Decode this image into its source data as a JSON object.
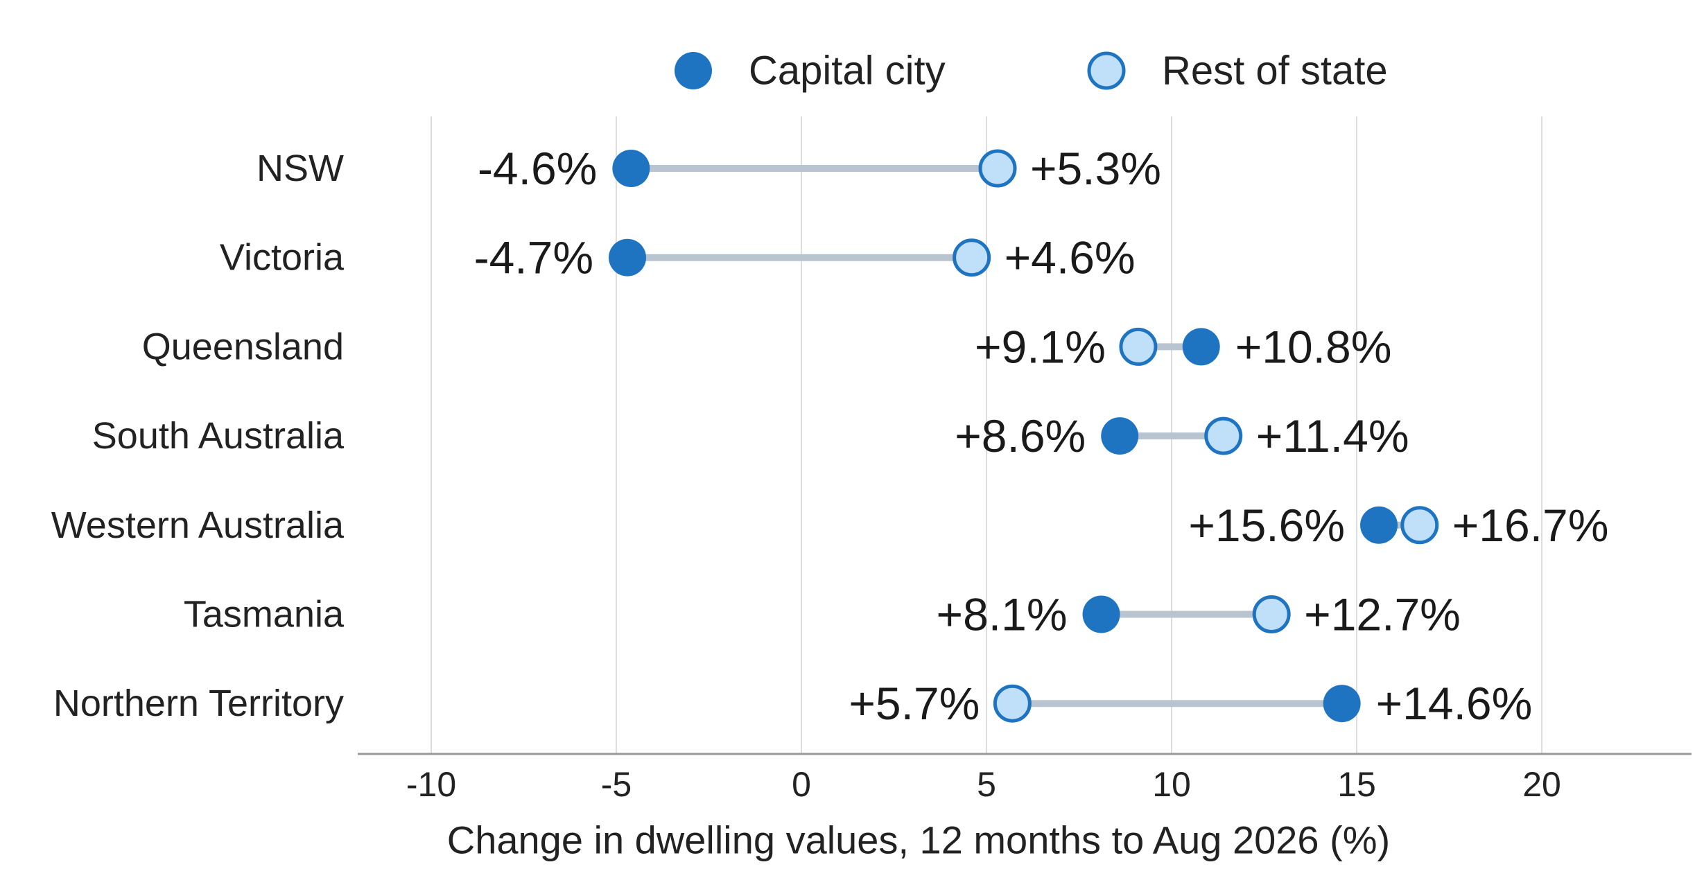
{
  "chart_data": {
    "type": "dumbbell",
    "xlabel": "Change in dwelling values, 12 months to Aug 2026 (%)",
    "xlim": [
      -12,
      24
    ],
    "xticks": [
      -10,
      -5,
      0,
      5,
      10,
      15,
      20
    ],
    "xtick_labels": [
      "-10",
      "-5",
      "0",
      "5",
      "10",
      "15",
      "20"
    ],
    "grid": "vertical",
    "legend_position": "top",
    "categories": [
      "NSW",
      "Victoria",
      "Queensland",
      "South Australia",
      "Western Australia",
      "Tasmania",
      "Northern Territory"
    ],
    "series": [
      {
        "name": "Capital city",
        "values": [
          -4.6,
          -4.7,
          10.8,
          8.6,
          15.6,
          8.1,
          14.6
        ],
        "labels": [
          "-4.6%",
          "-4.7%",
          "+10.8%",
          "+8.6%",
          "+15.6%",
          "+8.1%",
          "+14.6%"
        ]
      },
      {
        "name": "Rest of state",
        "values": [
          5.3,
          4.6,
          9.1,
          11.4,
          16.7,
          12.7,
          5.7
        ],
        "labels": [
          "+5.3%",
          "+4.6%",
          "+9.1%",
          "+11.4%",
          "+16.7%",
          "+12.7%",
          "+5.7%"
        ]
      }
    ],
    "colors": {
      "capital_fill": "#1f74c1",
      "rest_fill": "#bfe0f8",
      "rest_stroke": "#1f74c1",
      "connector": "#b8c4d0",
      "grid": "#dddddd",
      "axis": "#999999"
    }
  }
}
